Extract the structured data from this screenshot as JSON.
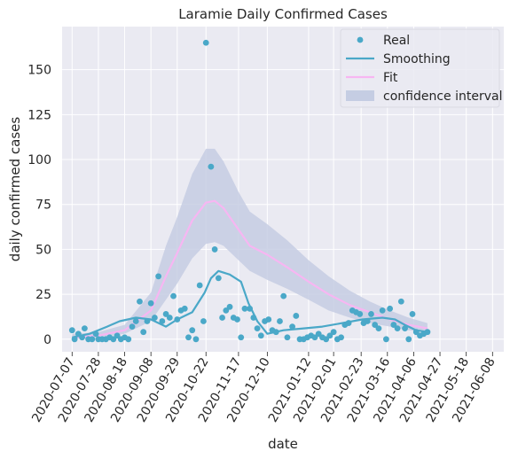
{
  "chart_data": {
    "type": "scatter",
    "title": "Laramie Daily Confirmed Cases",
    "xlabel": "date",
    "ylabel": "daily confirmed cases",
    "xlim": [
      "2020-06-29",
      "2021-06-17"
    ],
    "ylim": [
      -7,
      174
    ],
    "xticks": [
      "2020-07-07",
      "2020-07-28",
      "2020-08-18",
      "2020-09-08",
      "2020-09-29",
      "2020-10-22",
      "2020-11-17",
      "2020-12-10",
      "2021-01-12",
      "2021-02-01",
      "2021-02-23",
      "2021-03-16",
      "2021-04-06",
      "2021-04-27",
      "2021-05-18",
      "2021-06-08"
    ],
    "yticks": [
      0,
      25,
      50,
      75,
      100,
      125,
      150
    ],
    "grid": true,
    "legend_position": "top-right",
    "colors": {
      "background": "#eaeaf2",
      "grid": "#ffffff",
      "real": "#4aa8c8",
      "smoothing": "#4aa8c8",
      "fit": "#f7b6f2",
      "confidence_interval": "#c5cde3"
    },
    "legend": [
      {
        "label": "Real",
        "kind": "marker",
        "series": "real"
      },
      {
        "label": "Smoothing",
        "kind": "line",
        "series": "smoothing"
      },
      {
        "label": "Fit",
        "kind": "line",
        "series": "fit"
      },
      {
        "label": "confidence interval",
        "kind": "patch",
        "series": "confidence_interval"
      }
    ],
    "series": [
      {
        "name": "Real",
        "kind": "scatter",
        "points": [
          {
            "x": "2020-07-07",
            "y": 5
          },
          {
            "x": "2020-07-09",
            "y": 0
          },
          {
            "x": "2020-07-12",
            "y": 3
          },
          {
            "x": "2020-07-15",
            "y": 1
          },
          {
            "x": "2020-07-17",
            "y": 6
          },
          {
            "x": "2020-07-20",
            "y": 0
          },
          {
            "x": "2020-07-23",
            "y": 0
          },
          {
            "x": "2020-07-26",
            "y": 3
          },
          {
            "x": "2020-07-28",
            "y": 0
          },
          {
            "x": "2020-07-31",
            "y": 0
          },
          {
            "x": "2020-08-03",
            "y": 0
          },
          {
            "x": "2020-08-06",
            "y": 1
          },
          {
            "x": "2020-08-09",
            "y": 0
          },
          {
            "x": "2020-08-12",
            "y": 2
          },
          {
            "x": "2020-08-15",
            "y": 0
          },
          {
            "x": "2020-08-18",
            "y": 1
          },
          {
            "x": "2020-08-21",
            "y": 0
          },
          {
            "x": "2020-08-24",
            "y": 7
          },
          {
            "x": "2020-08-27",
            "y": 10
          },
          {
            "x": "2020-08-30",
            "y": 21
          },
          {
            "x": "2020-09-02",
            "y": 4
          },
          {
            "x": "2020-09-05",
            "y": 10
          },
          {
            "x": "2020-09-08",
            "y": 20
          },
          {
            "x": "2020-09-11",
            "y": 12
          },
          {
            "x": "2020-09-14",
            "y": 35
          },
          {
            "x": "2020-09-17",
            "y": 10
          },
          {
            "x": "2020-09-20",
            "y": 14
          },
          {
            "x": "2020-09-23",
            "y": 12
          },
          {
            "x": "2020-09-26",
            "y": 24
          },
          {
            "x": "2020-09-29",
            "y": 11
          },
          {
            "x": "2020-10-02",
            "y": 16
          },
          {
            "x": "2020-10-05",
            "y": 17
          },
          {
            "x": "2020-10-08",
            "y": 1
          },
          {
            "x": "2020-10-11",
            "y": 5
          },
          {
            "x": "2020-10-14",
            "y": 0
          },
          {
            "x": "2020-10-17",
            "y": 30
          },
          {
            "x": "2020-10-20",
            "y": 10
          },
          {
            "x": "2020-10-22",
            "y": 165
          },
          {
            "x": "2020-10-26",
            "y": 96
          },
          {
            "x": "2020-10-29",
            "y": 50
          },
          {
            "x": "2020-11-01",
            "y": 34
          },
          {
            "x": "2020-11-04",
            "y": 12
          },
          {
            "x": "2020-11-07",
            "y": 16
          },
          {
            "x": "2020-11-10",
            "y": 18
          },
          {
            "x": "2020-11-13",
            "y": 12
          },
          {
            "x": "2020-11-16",
            "y": 11
          },
          {
            "x": "2020-11-19",
            "y": 1
          },
          {
            "x": "2020-11-22",
            "y": 17
          },
          {
            "x": "2020-11-26",
            "y": 17
          },
          {
            "x": "2020-11-29",
            "y": 12
          },
          {
            "x": "2020-12-02",
            "y": 6
          },
          {
            "x": "2020-12-05",
            "y": 2
          },
          {
            "x": "2020-12-08",
            "y": 10
          },
          {
            "x": "2020-12-11",
            "y": 11
          },
          {
            "x": "2020-12-14",
            "y": 5
          },
          {
            "x": "2020-12-17",
            "y": 4
          },
          {
            "x": "2020-12-20",
            "y": 10
          },
          {
            "x": "2020-12-23",
            "y": 24
          },
          {
            "x": "2020-12-26",
            "y": 1
          },
          {
            "x": "2020-12-30",
            "y": 7
          },
          {
            "x": "2021-01-02",
            "y": 13
          },
          {
            "x": "2021-01-05",
            "y": 0
          },
          {
            "x": "2021-01-08",
            "y": 0
          },
          {
            "x": "2021-01-11",
            "y": 1
          },
          {
            "x": "2021-01-14",
            "y": 2
          },
          {
            "x": "2021-01-17",
            "y": 1
          },
          {
            "x": "2021-01-20",
            "y": 3
          },
          {
            "x": "2021-01-23",
            "y": 1
          },
          {
            "x": "2021-01-26",
            "y": 0
          },
          {
            "x": "2021-01-29",
            "y": 2
          },
          {
            "x": "2021-02-01",
            "y": 4
          },
          {
            "x": "2021-02-04",
            "y": 0
          },
          {
            "x": "2021-02-07",
            "y": 1
          },
          {
            "x": "2021-02-10",
            "y": 8
          },
          {
            "x": "2021-02-13",
            "y": 9
          },
          {
            "x": "2021-02-16",
            "y": 16
          },
          {
            "x": "2021-02-19",
            "y": 15
          },
          {
            "x": "2021-02-22",
            "y": 14
          },
          {
            "x": "2021-02-25",
            "y": 9
          },
          {
            "x": "2021-02-28",
            "y": 10
          },
          {
            "x": "2021-03-03",
            "y": 14
          },
          {
            "x": "2021-03-06",
            "y": 8
          },
          {
            "x": "2021-03-09",
            "y": 6
          },
          {
            "x": "2021-03-12",
            "y": 16
          },
          {
            "x": "2021-03-15",
            "y": 0
          },
          {
            "x": "2021-03-18",
            "y": 17
          },
          {
            "x": "2021-03-21",
            "y": 8
          },
          {
            "x": "2021-03-24",
            "y": 6
          },
          {
            "x": "2021-03-27",
            "y": 21
          },
          {
            "x": "2021-03-30",
            "y": 6
          },
          {
            "x": "2021-04-02",
            "y": 0
          },
          {
            "x": "2021-04-05",
            "y": 14
          },
          {
            "x": "2021-04-08",
            "y": 4
          },
          {
            "x": "2021-04-11",
            "y": 2
          },
          {
            "x": "2021-04-14",
            "y": 3
          },
          {
            "x": "2021-04-17",
            "y": 4
          }
        ]
      },
      {
        "name": "Smoothing",
        "kind": "line",
        "points": [
          {
            "x": "2020-07-07",
            "y": 1
          },
          {
            "x": "2020-07-21",
            "y": 3
          },
          {
            "x": "2020-08-04",
            "y": 7
          },
          {
            "x": "2020-08-14",
            "y": 10
          },
          {
            "x": "2020-08-27",
            "y": 12
          },
          {
            "x": "2020-09-08",
            "y": 11
          },
          {
            "x": "2020-09-20",
            "y": 7
          },
          {
            "x": "2020-09-29",
            "y": 11
          },
          {
            "x": "2020-10-11",
            "y": 15
          },
          {
            "x": "2020-10-21",
            "y": 26
          },
          {
            "x": "2020-10-26",
            "y": 34
          },
          {
            "x": "2020-11-01",
            "y": 38
          },
          {
            "x": "2020-11-10",
            "y": 36
          },
          {
            "x": "2020-11-19",
            "y": 32
          },
          {
            "x": "2020-11-25",
            "y": 20
          },
          {
            "x": "2020-12-02",
            "y": 10
          },
          {
            "x": "2020-12-10",
            "y": 3
          },
          {
            "x": "2020-12-23",
            "y": 5
          },
          {
            "x": "2021-01-08",
            "y": 6
          },
          {
            "x": "2021-01-23",
            "y": 7
          },
          {
            "x": "2021-02-08",
            "y": 9
          },
          {
            "x": "2021-02-24",
            "y": 11
          },
          {
            "x": "2021-03-12",
            "y": 12
          },
          {
            "x": "2021-03-22",
            "y": 11
          },
          {
            "x": "2021-03-30",
            "y": 8
          },
          {
            "x": "2021-04-08",
            "y": 5
          },
          {
            "x": "2021-04-17",
            "y": 4
          }
        ]
      },
      {
        "name": "Fit",
        "kind": "line",
        "points": [
          {
            "x": "2020-07-07",
            "y": 1
          },
          {
            "x": "2020-07-28",
            "y": 2
          },
          {
            "x": "2020-08-18",
            "y": 5
          },
          {
            "x": "2020-09-08",
            "y": 16
          },
          {
            "x": "2020-09-20",
            "y": 35
          },
          {
            "x": "2020-09-29",
            "y": 48
          },
          {
            "x": "2020-10-11",
            "y": 66
          },
          {
            "x": "2020-10-22",
            "y": 76
          },
          {
            "x": "2020-10-29",
            "y": 77
          },
          {
            "x": "2020-11-05",
            "y": 73
          },
          {
            "x": "2020-11-17",
            "y": 61
          },
          {
            "x": "2020-11-26",
            "y": 52
          },
          {
            "x": "2020-12-10",
            "y": 47
          },
          {
            "x": "2020-12-26",
            "y": 40
          },
          {
            "x": "2021-01-12",
            "y": 32
          },
          {
            "x": "2021-01-28",
            "y": 25
          },
          {
            "x": "2021-02-14",
            "y": 19
          },
          {
            "x": "2021-03-02",
            "y": 15
          },
          {
            "x": "2021-03-18",
            "y": 11
          },
          {
            "x": "2021-04-02",
            "y": 8
          },
          {
            "x": "2021-04-17",
            "y": 6
          }
        ]
      },
      {
        "name": "confidence interval",
        "kind": "band",
        "points": [
          {
            "x": "2020-07-07",
            "lower": 0,
            "upper": 3
          },
          {
            "x": "2020-07-28",
            "lower": 1,
            "upper": 4
          },
          {
            "x": "2020-08-18",
            "lower": 3,
            "upper": 8
          },
          {
            "x": "2020-09-08",
            "lower": 10,
            "upper": 26
          },
          {
            "x": "2020-09-20",
            "lower": 22,
            "upper": 52
          },
          {
            "x": "2020-09-29",
            "lower": 31,
            "upper": 68
          },
          {
            "x": "2020-10-11",
            "lower": 45,
            "upper": 92
          },
          {
            "x": "2020-10-22",
            "lower": 53,
            "upper": 106
          },
          {
            "x": "2020-10-29",
            "lower": 54,
            "upper": 106
          },
          {
            "x": "2020-11-05",
            "lower": 52,
            "upper": 99
          },
          {
            "x": "2020-11-17",
            "lower": 44,
            "upper": 82
          },
          {
            "x": "2020-11-26",
            "lower": 38,
            "upper": 71
          },
          {
            "x": "2020-12-10",
            "lower": 33,
            "upper": 64
          },
          {
            "x": "2020-12-26",
            "lower": 28,
            "upper": 55
          },
          {
            "x": "2021-01-12",
            "lower": 22,
            "upper": 44
          },
          {
            "x": "2021-01-28",
            "lower": 16,
            "upper": 35
          },
          {
            "x": "2021-02-14",
            "lower": 12,
            "upper": 27
          },
          {
            "x": "2021-03-02",
            "lower": 9,
            "upper": 21
          },
          {
            "x": "2021-03-18",
            "lower": 7,
            "upper": 16
          },
          {
            "x": "2021-04-02",
            "lower": 5,
            "upper": 12
          },
          {
            "x": "2021-04-17",
            "lower": 4,
            "upper": 9
          }
        ]
      }
    ]
  }
}
